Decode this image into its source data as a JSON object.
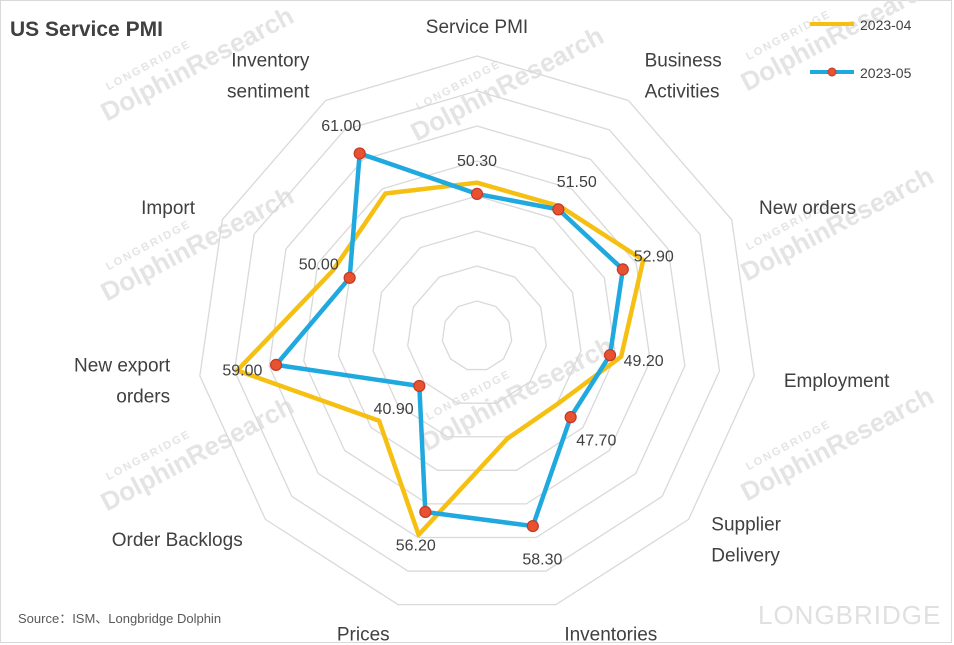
{
  "chart_data": {
    "type": "radar",
    "title": "US Service PMI",
    "categories": [
      [
        "Service PMI"
      ],
      [
        "Business",
        "Activities"
      ],
      [
        "New orders"
      ],
      [
        "Employment"
      ],
      [
        "Supplier",
        "Delivery"
      ],
      [
        "Inventories"
      ],
      [
        "Prices"
      ],
      [
        "Order Backlogs"
      ],
      [
        "New export",
        "orders"
      ],
      [
        "Import"
      ],
      [
        "Inventory",
        "sentiment"
      ]
    ],
    "rlim": [
      30,
      70
    ],
    "ring_step": 5,
    "series": [
      {
        "name": "2023-04",
        "color": "#F5C012",
        "marker": false,
        "values": [
          51.9,
          52.0,
          56.1,
          50.8,
          45.0,
          45.3,
          59.6,
          48.5,
          64.6,
          52.6,
          54.2
        ]
      },
      {
        "name": "2023-05",
        "color": "#1FA9DE",
        "marker": true,
        "marker_fill": "#E8522E",
        "marker_stroke": "#C0392B",
        "values": [
          50.3,
          51.5,
          52.9,
          49.2,
          47.7,
          58.3,
          56.2,
          40.9,
          59.0,
          50.0,
          61.0
        ]
      }
    ],
    "data_labels": [
      "50.30",
      "51.50",
      "52.90",
      "49.20",
      "47.70",
      "58.30",
      "56.20",
      "40.90",
      "59.00",
      "50.00",
      "61.00"
    ],
    "legend_position": "top-right"
  },
  "source": "Source：ISM、Longbridge Dolphin",
  "watermark": {
    "main": "DolphinResearch",
    "sub": "LONGBRIDGE",
    "brand": "LONGBRIDGE"
  }
}
